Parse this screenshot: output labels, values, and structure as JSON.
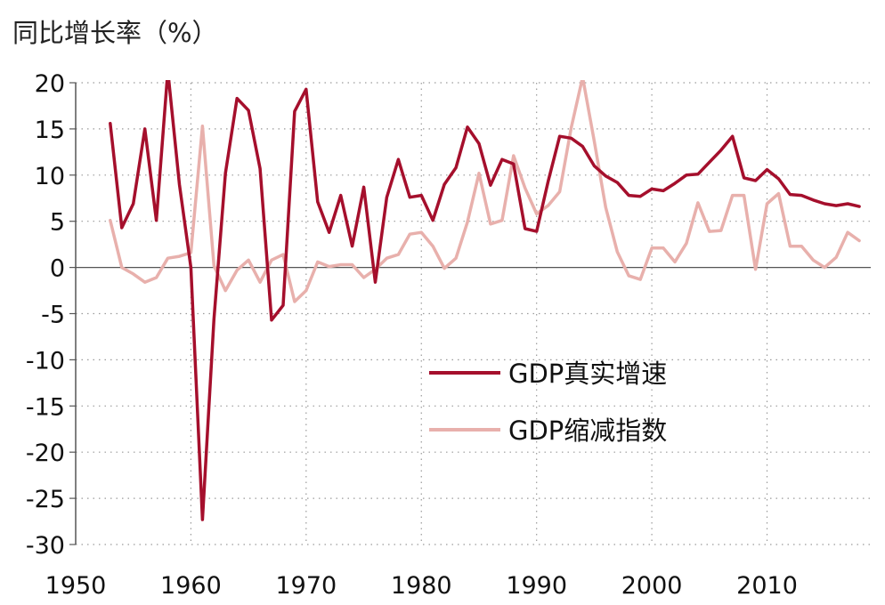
{
  "chart_data": {
    "type": "line",
    "ylabel": "同比增长率（%）",
    "xlim": [
      1950,
      2019
    ],
    "ylim": [
      -30,
      20
    ],
    "x_ticks": [
      1950,
      1960,
      1970,
      1980,
      1990,
      2000,
      2010
    ],
    "y_ticks": [
      20,
      15,
      10,
      5,
      0,
      -5,
      -10,
      -15,
      -20,
      -25,
      -30
    ],
    "grid": true,
    "legend_position": "center-right",
    "x": [
      1953,
      1954,
      1955,
      1956,
      1957,
      1958,
      1959,
      1960,
      1961,
      1962,
      1963,
      1964,
      1965,
      1966,
      1967,
      1968,
      1969,
      1970,
      1971,
      1972,
      1973,
      1974,
      1975,
      1976,
      1977,
      1978,
      1979,
      1980,
      1981,
      1982,
      1983,
      1984,
      1985,
      1986,
      1987,
      1988,
      1989,
      1990,
      1991,
      1992,
      1993,
      1994,
      1995,
      1996,
      1997,
      1998,
      1999,
      2000,
      2001,
      2002,
      2003,
      2004,
      2005,
      2006,
      2007,
      2008,
      2009,
      2010,
      2011,
      2012,
      2013,
      2014,
      2015,
      2016,
      2017,
      2018
    ],
    "series": [
      {
        "name": "GDP真实增速",
        "color": "#a50f2c",
        "values": [
          15.6,
          4.3,
          6.9,
          15.0,
          5.1,
          21.3,
          9.0,
          0.0,
          -27.3,
          -5.6,
          10.2,
          18.3,
          17.0,
          10.7,
          -5.7,
          -4.1,
          16.9,
          19.3,
          7.1,
          3.8,
          7.8,
          2.3,
          8.7,
          -1.6,
          7.6,
          11.7,
          7.6,
          7.8,
          5.1,
          9.0,
          10.8,
          15.2,
          13.4,
          8.9,
          11.7,
          11.2,
          4.2,
          3.9,
          9.3,
          14.2,
          14.0,
          13.1,
          11.0,
          9.9,
          9.2,
          7.8,
          7.7,
          8.5,
          8.3,
          9.1,
          10.0,
          10.1,
          11.4,
          12.7,
          14.2,
          9.7,
          9.4,
          10.6,
          9.6,
          7.9,
          7.8,
          7.3,
          6.9,
          6.7,
          6.9,
          6.6
        ]
      },
      {
        "name": "GDP缩减指数",
        "color": "#e8b0ac",
        "values": [
          5.1,
          0.0,
          -0.7,
          -1.6,
          -1.1,
          1.0,
          1.2,
          1.6,
          15.3,
          0.2,
          -2.5,
          -0.3,
          0.8,
          -1.6,
          0.8,
          1.4,
          -3.7,
          -2.5,
          0.6,
          0.1,
          0.3,
          0.3,
          -1.1,
          -0.2,
          1.0,
          1.4,
          3.6,
          3.8,
          2.3,
          -0.1,
          1.0,
          4.9,
          10.2,
          4.7,
          5.1,
          12.1,
          8.6,
          5.8,
          6.7,
          8.2,
          15.1,
          20.6,
          13.7,
          6.5,
          1.7,
          -0.9,
          -1.3,
          2.1,
          2.1,
          0.6,
          2.6,
          7.0,
          3.9,
          4.0,
          7.8,
          7.8,
          -0.2,
          6.9,
          8.0,
          2.3,
          2.3,
          0.8,
          0.0,
          1.1,
          3.8,
          2.9
        ]
      }
    ]
  }
}
